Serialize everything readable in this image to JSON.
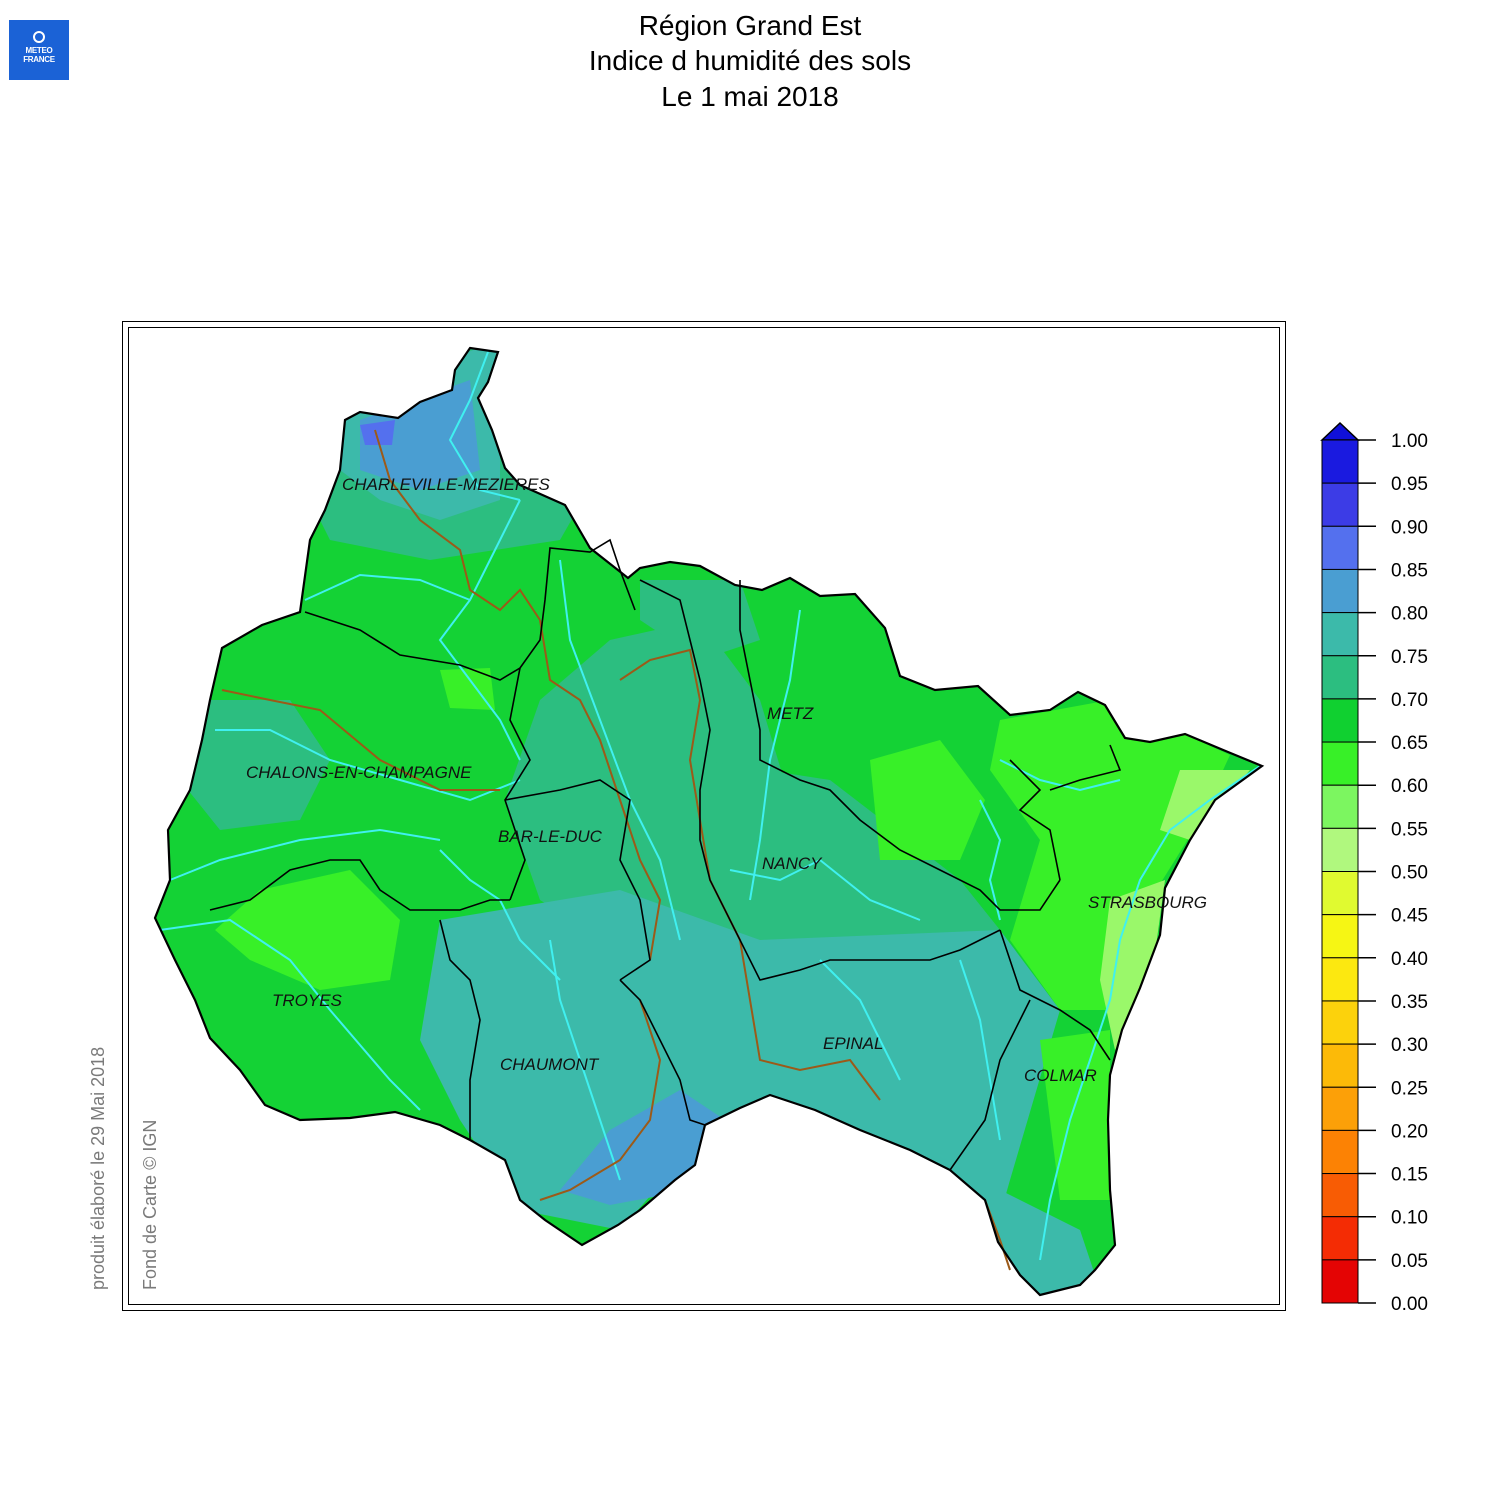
{
  "logo": {
    "line1": "METEO",
    "line2": "FRANCE",
    "icon": "meteo-france-logo-icon"
  },
  "title": {
    "line1": "Région Grand Est",
    "line2": "Indice d humidité des sols",
    "line3": "Le 1 mai 2018"
  },
  "side_text": {
    "produced": "produit élaboré le 29 Mai 2018",
    "basemap": "Fond de Carte © IGN"
  },
  "cities": [
    {
      "name": "CHARLEVILLE-MEZIERES"
    },
    {
      "name": "METZ"
    },
    {
      "name": "CHALONS-EN-CHAMPAGNE"
    },
    {
      "name": "BAR-LE-DUC"
    },
    {
      "name": "NANCY"
    },
    {
      "name": "STRASBOURG"
    },
    {
      "name": "TROYES"
    },
    {
      "name": "CHAUMONT"
    },
    {
      "name": "EPINAL"
    },
    {
      "name": "COLMAR"
    }
  ],
  "legend": {
    "ticks": [
      "1.00",
      "0.95",
      "0.90",
      "0.85",
      "0.80",
      "0.75",
      "0.70",
      "0.65",
      "0.60",
      "0.55",
      "0.50",
      "0.45",
      "0.40",
      "0.35",
      "0.30",
      "0.25",
      "0.20",
      "0.15",
      "0.10",
      "0.05",
      "0.00"
    ],
    "colors": [
      "#1a1ae0",
      "#3c3ce6",
      "#5470ee",
      "#4a9ed2",
      "#3cbaaa",
      "#2cbe80",
      "#10d030",
      "#38f028",
      "#7cf660",
      "#b0f87e",
      "#e0fa30",
      "#f6f614",
      "#fce810",
      "#fcd20c",
      "#fcba08",
      "#fca008",
      "#fc8204",
      "#f85c04",
      "#f42c04",
      "#e40404"
    ],
    "overflow_color": "#1010d8",
    "region_colors": {
      "base": "#14d235",
      "teal": "#3cbaaa",
      "teal_dark": "#2cbe80",
      "blue": "#4a9ed2",
      "light_green": "#38f028",
      "pale_green": "#9af86a",
      "violet": "#5470ee",
      "river": "#40f0f0",
      "canal": "#9c5a18"
    }
  }
}
